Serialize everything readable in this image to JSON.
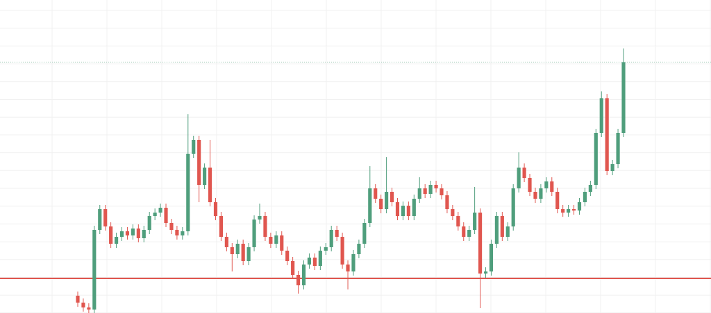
{
  "chart_data": {
    "type": "candlestick",
    "ylim": [
      0,
      452
    ],
    "up_color": "#4f9e7c",
    "down_color": "#e0564f",
    "open": [
      25,
      15,
      8,
      5,
      120,
      150,
      125,
      100,
      110,
      118,
      112,
      122,
      108,
      120,
      140,
      145,
      152,
      130,
      120,
      112,
      118,
      230,
      250,
      185,
      210,
      160,
      140,
      110,
      95,
      85,
      100,
      75,
      95,
      135,
      140,
      110,
      100,
      112,
      90,
      75,
      55,
      40,
      70,
      80,
      68,
      90,
      95,
      120,
      110,
      70,
      60,
      85,
      100,
      130,
      180,
      165,
      150,
      175,
      160,
      140,
      155,
      140,
      165,
      180,
      172,
      185,
      180,
      170,
      150,
      140,
      125,
      110,
      120,
      145,
      57,
      60,
      100,
      140,
      110,
      125,
      180,
      210,
      195,
      175,
      165,
      180,
      190,
      175,
      150,
      145,
      150,
      148,
      160,
      175,
      185,
      260,
      310,
      205,
      215,
      260
    ],
    "high": [
      31,
      21,
      14,
      126,
      156,
      156,
      131,
      116,
      124,
      124,
      128,
      128,
      126,
      146,
      151,
      158,
      158,
      136,
      126,
      124,
      287,
      256,
      256,
      216,
      250,
      166,
      146,
      116,
      101,
      106,
      106,
      101,
      141,
      158,
      146,
      116,
      118,
      118,
      96,
      81,
      61,
      76,
      86,
      86,
      96,
      101,
      126,
      126,
      116,
      76,
      91,
      106,
      136,
      212,
      186,
      171,
      225,
      181,
      166,
      161,
      161,
      171,
      196,
      186,
      191,
      191,
      186,
      176,
      156,
      146,
      131,
      126,
      182,
      151,
      66,
      106,
      146,
      146,
      131,
      186,
      232,
      216,
      201,
      181,
      186,
      196,
      196,
      181,
      156,
      156,
      156,
      166,
      181,
      191,
      266,
      320,
      316,
      221,
      266,
      382
    ],
    "low": [
      9,
      2,
      0,
      0,
      114,
      119,
      94,
      94,
      104,
      106,
      106,
      102,
      102,
      114,
      134,
      139,
      124,
      114,
      106,
      106,
      112,
      224,
      160,
      179,
      154,
      134,
      104,
      89,
      60,
      79,
      69,
      69,
      89,
      129,
      104,
      94,
      94,
      84,
      69,
      49,
      28,
      34,
      64,
      62,
      62,
      84,
      89,
      104,
      64,
      34,
      54,
      79,
      94,
      124,
      159,
      144,
      144,
      154,
      134,
      134,
      134,
      134,
      159,
      166,
      166,
      174,
      164,
      144,
      134,
      119,
      104,
      104,
      114,
      7,
      51,
      54,
      94,
      104,
      104,
      119,
      174,
      189,
      169,
      159,
      159,
      174,
      169,
      144,
      139,
      139,
      142,
      142,
      154,
      169,
      179,
      254,
      199,
      199,
      209,
      254
    ],
    "close": [
      15,
      8,
      5,
      120,
      150,
      125,
      100,
      110,
      118,
      112,
      122,
      108,
      120,
      140,
      145,
      152,
      130,
      120,
      112,
      118,
      230,
      250,
      185,
      210,
      160,
      140,
      110,
      95,
      85,
      100,
      75,
      95,
      135,
      140,
      110,
      100,
      112,
      90,
      75,
      55,
      40,
      70,
      80,
      68,
      90,
      95,
      120,
      110,
      70,
      60,
      85,
      100,
      130,
      180,
      165,
      150,
      175,
      160,
      140,
      155,
      140,
      165,
      180,
      172,
      185,
      180,
      170,
      150,
      140,
      125,
      110,
      120,
      145,
      57,
      60,
      100,
      140,
      110,
      125,
      180,
      210,
      195,
      175,
      165,
      180,
      190,
      175,
      150,
      145,
      150,
      148,
      160,
      175,
      185,
      260,
      310,
      205,
      215,
      260,
      362
    ],
    "hlines": [
      {
        "value": 50,
        "color": "#e0564f",
        "style": "solid"
      },
      {
        "value": 362,
        "color": "#9fc9b6",
        "style": "dotted"
      }
    ]
  }
}
